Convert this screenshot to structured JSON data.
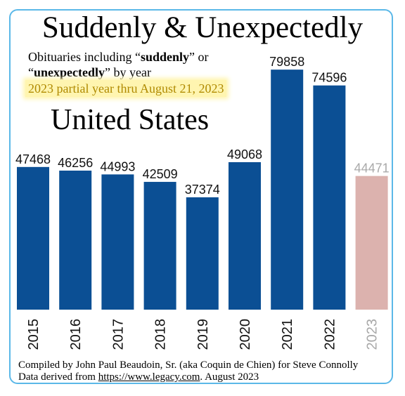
{
  "title": "Suddenly & Unexpectedly",
  "subtitle": {
    "line1_pre": "Obituaries including “",
    "line1_bold": "suddenly",
    "line1_post": "” or",
    "line2_pre": "“",
    "line2_bold": "unexpectedly",
    "line2_post": "” by year"
  },
  "note": "2023 partial year thru August 21, 2023",
  "region": "United States",
  "footer": {
    "line1": "Compiled by John Paul Beaudoin, Sr. (aka Coquin de Chien) for Steve Connolly",
    "line2_pre": "Data derived from ",
    "line2_link": "https://www.legacy.com",
    "line2_post": ". August 2023"
  },
  "colors": {
    "bar": "#0b4f94",
    "bar_partial": "#dcb2ae",
    "label_partial": "#a9a9a9",
    "frame": "#5bb8e8",
    "highlight": "#fff5b0"
  },
  "chart_data": {
    "type": "bar",
    "categories": [
      "2015",
      "2016",
      "2017",
      "2018",
      "2019",
      "2020",
      "2021",
      "2022",
      "2023"
    ],
    "values": [
      47468,
      46256,
      44993,
      42509,
      37374,
      49068,
      79858,
      74596,
      44471
    ],
    "partial": [
      false,
      false,
      false,
      false,
      false,
      false,
      false,
      false,
      true
    ],
    "ylim": [
      0,
      82000
    ],
    "grid": false,
    "legend": "none",
    "data_labels": true
  }
}
